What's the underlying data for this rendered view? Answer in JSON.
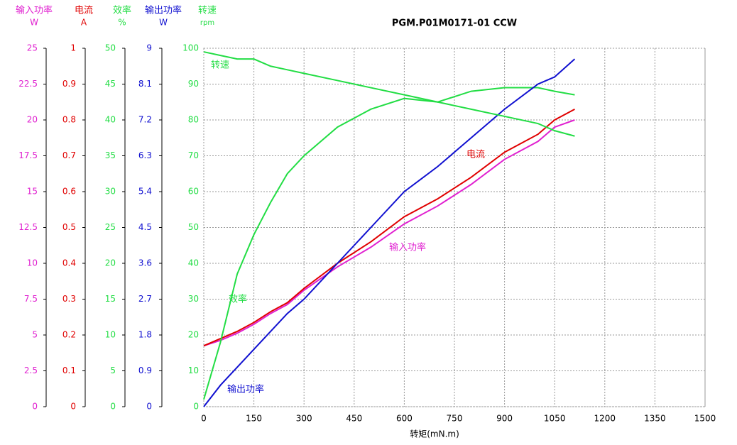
{
  "chart_data": {
    "type": "line",
    "title": "PGM.P01M0171-01  CCW",
    "x_label": "转矩(mN.m)",
    "xlim": [
      0,
      1500
    ],
    "xticks": [
      0,
      150,
      300,
      450,
      600,
      750,
      900,
      1050,
      1200,
      1350,
      1500
    ],
    "grid": true,
    "x": [
      0,
      50,
      100,
      150,
      200,
      250,
      300,
      400,
      500,
      600,
      700,
      800,
      900,
      1000,
      1050,
      1110
    ],
    "axes": [
      {
        "name": "输入功率",
        "unit": "W",
        "color": "#e020d0",
        "ylim": [
          0,
          25
        ],
        "yticks": [
          0,
          2.5,
          5,
          7.5,
          10,
          12.5,
          15,
          17.5,
          20,
          22.5,
          25
        ],
        "values": [
          4.25,
          4.625,
          5.125,
          5.75,
          6.5,
          7.125,
          8.125,
          9.75,
          11.125,
          12.75,
          14,
          15.5,
          17.25,
          18.5,
          19.5,
          20
        ]
      },
      {
        "name": "电流",
        "unit": "A",
        "color": "#e00000",
        "ylim": [
          0,
          1
        ],
        "yticks": [
          0,
          0.1,
          0.2,
          0.3,
          0.4,
          0.5,
          0.6,
          0.7,
          0.8,
          0.9,
          1
        ],
        "values": [
          0.17,
          0.19,
          0.21,
          0.235,
          0.265,
          0.29,
          0.33,
          0.4,
          0.46,
          0.53,
          0.58,
          0.64,
          0.71,
          0.76,
          0.8,
          0.83
        ]
      },
      {
        "name": "效率",
        "unit": "%",
        "color": "#22dd44",
        "ylim": [
          0,
          50
        ],
        "yticks": [
          0,
          5,
          10,
          15,
          20,
          25,
          30,
          35,
          40,
          45,
          50
        ],
        "values": [
          1,
          9,
          18.5,
          24,
          28.5,
          32.5,
          35,
          39,
          41.5,
          43,
          42.5,
          44,
          44.5,
          44.5,
          44,
          43.5
        ]
      },
      {
        "name": "输出功率",
        "unit": "W",
        "color": "#1010d0",
        "ylim": [
          0,
          9
        ],
        "yticks": [
          0,
          0.9,
          1.8,
          2.7,
          3.6,
          4.5,
          5.4,
          6.3,
          7.2,
          8.1,
          9
        ],
        "values": [
          0,
          0.54,
          0.99,
          1.44,
          1.89,
          2.34,
          2.7,
          3.6,
          4.5,
          5.4,
          6.03,
          6.75,
          7.47,
          8.1,
          8.28,
          8.73
        ]
      },
      {
        "name": "转速",
        "unit": "rpm",
        "color": "#22dd44",
        "ylim": [
          0,
          100
        ],
        "yticks": [
          0,
          10,
          20,
          30,
          40,
          50,
          60,
          70,
          80,
          90,
          100
        ],
        "values": [
          99,
          98,
          97,
          97,
          95,
          94,
          93,
          91,
          89,
          87,
          85,
          83,
          81,
          79,
          77,
          75.5
        ]
      }
    ]
  }
}
